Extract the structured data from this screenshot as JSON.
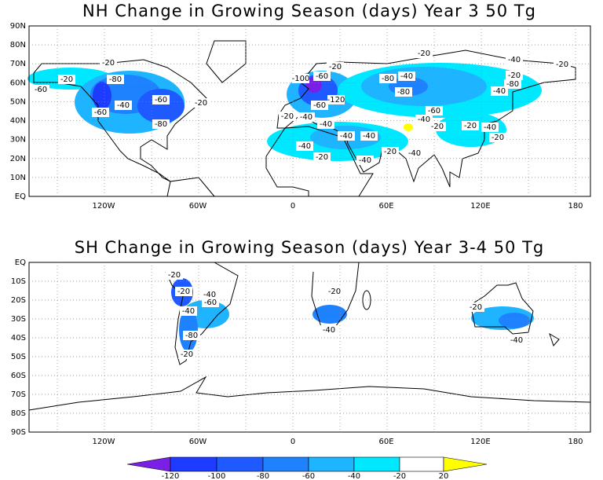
{
  "panels": [
    {
      "title": "NH Change in Growing Season (days) Year 3 50 Tg",
      "lat_labels": [
        "90N",
        "80N",
        "70N",
        "60N",
        "50N",
        "40N",
        "30N",
        "20N",
        "10N",
        "EQ"
      ],
      "lon_labels": [
        "120W",
        "60W",
        "0",
        "60E",
        "120E",
        "180"
      ],
      "contour_labels": [
        "-20",
        "-20",
        "-60",
        "-80",
        "-40",
        "-60",
        "-60",
        "-20",
        "-80",
        "-20",
        "-60",
        "-100",
        "-120",
        "-60",
        "-40",
        "-40",
        "-20",
        "-20",
        "-40",
        "-20",
        "-80",
        "-40",
        "-80",
        "-60",
        "-40",
        "-20",
        "-40",
        "-20",
        "-20",
        "-80",
        "-20",
        "-40",
        "-40",
        "-40",
        "-40",
        "-20",
        "-40",
        "-20",
        "-40"
      ]
    },
    {
      "title": "SH Change in Growing Season (days) Year 3-4 50 Tg",
      "lat_labels": [
        "EQ",
        "10S",
        "20S",
        "30S",
        "40S",
        "50S",
        "60S",
        "70S",
        "80S",
        "90S"
      ],
      "lon_labels": [
        "120W",
        "60W",
        "0",
        "60E",
        "120E",
        "180"
      ],
      "contour_labels": [
        "-20",
        "-40",
        "-20",
        "-60",
        "-40",
        "-80",
        "-20",
        "-40",
        "-20",
        "-20",
        "-40"
      ]
    }
  ],
  "colorbar": {
    "labels": [
      "-120",
      "-100",
      "-80",
      "-60",
      "-40",
      "-20",
      "20"
    ],
    "colors": [
      "#7a1fe6",
      "#1e3cff",
      "#1e5aff",
      "#1e82ff",
      "#1eb4ff",
      "#00e8ff",
      "#ffffff",
      "#ffff00"
    ]
  }
}
